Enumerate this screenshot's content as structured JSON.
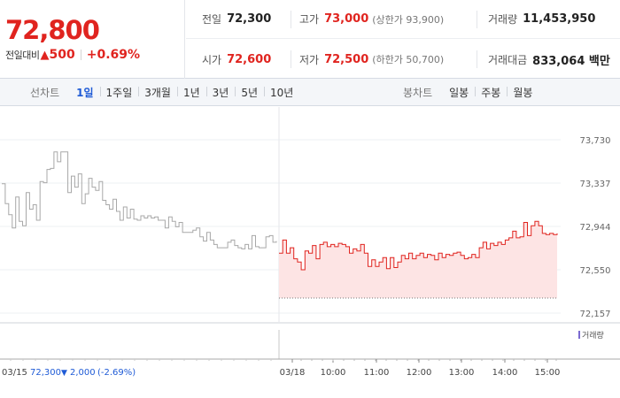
{
  "summary": {
    "current_price": "72,800",
    "change_label": "전일대비",
    "change_arrow": "▲",
    "change_amount": "500",
    "change_rate": "+0.69%"
  },
  "stats": {
    "prev_close": {
      "label": "전일",
      "value": "72,300"
    },
    "high": {
      "label": "고가",
      "value": "73,000",
      "sub": "(상한가 93,900)"
    },
    "volume": {
      "label": "거래량",
      "value": "11,453,950"
    },
    "open": {
      "label": "시가",
      "value": "72,600"
    },
    "low": {
      "label": "저가",
      "value": "72,500",
      "sub": "(하한가 50,700)"
    },
    "trade_value": {
      "label": "거래대금",
      "value": "833,064 백만"
    }
  },
  "toolbar": {
    "line_chart_label": "선차트",
    "line_periods": [
      "1일",
      "1주일",
      "3개월",
      "1년",
      "3년",
      "5년",
      "10년"
    ],
    "active_period": "1일",
    "candle_chart_label": "봉차트",
    "candle_periods": [
      "일봉",
      "주봉",
      "월봉"
    ]
  },
  "chart_data": {
    "type": "line",
    "y_ticks": [
      "73,730",
      "73,337",
      "72,944",
      "72,550",
      "72,157"
    ],
    "ylim": [
      72157,
      73730
    ],
    "x_ticks": [
      "03/15",
      "03/18",
      "10:00",
      "11:00",
      "12:00",
      "13:00",
      "14:00",
      "15:00"
    ],
    "volume_label": "거래량",
    "previous_session": {
      "date_label": "03/15",
      "close": "72,300",
      "change_arrow": "▼",
      "change": "2,000",
      "change_rate": "(-2.69%)",
      "color": "#a8a8a8",
      "values": [
        73330,
        73150,
        73050,
        72930,
        73210,
        72990,
        72950,
        73250,
        73100,
        73140,
        73000,
        73350,
        73340,
        73460,
        73470,
        73620,
        73530,
        73620,
        73620,
        73250,
        73400,
        73300,
        73420,
        73150,
        73240,
        73380,
        73300,
        73270,
        73350,
        73180,
        73140,
        73100,
        73190,
        73080,
        73000,
        73120,
        73020,
        73100,
        73010,
        73000,
        73040,
        73020,
        73040,
        73020,
        73030,
        73000,
        73000,
        72930,
        73030,
        72990,
        72940,
        72980,
        72890,
        72890,
        72890,
        72910,
        72930,
        72850,
        72810,
        72890,
        72820,
        72780,
        72750,
        72750,
        72750,
        72800,
        72820,
        72770,
        72750,
        72740,
        72780,
        72740,
        72860,
        72760,
        72750,
        72750,
        72850,
        72860,
        72800,
        72810
      ],
      "reference": 72300
    },
    "current_session": {
      "date_label": "03/18",
      "color": "#e0241f",
      "fill": "#fde4e4",
      "values": [
        72700,
        72820,
        72700,
        72750,
        72650,
        72620,
        72550,
        72720,
        72700,
        72770,
        72650,
        72780,
        72800,
        72760,
        72780,
        72760,
        72790,
        72780,
        72760,
        72700,
        72740,
        72720,
        72780,
        72700,
        72580,
        72640,
        72580,
        72620,
        72660,
        72560,
        72660,
        72570,
        72620,
        72680,
        72650,
        72700,
        72650,
        72680,
        72700,
        72660,
        72690,
        72680,
        72640,
        72700,
        72660,
        72690,
        72680,
        72700,
        72710,
        72680,
        72650,
        72660,
        72690,
        72660,
        72750,
        72800,
        72740,
        72790,
        72770,
        72800,
        72780,
        72820,
        72840,
        72900,
        72840,
        72850,
        72980,
        72860,
        72950,
        72990,
        72950,
        72880,
        72870,
        72880,
        72870,
        72880
      ],
      "reference": 72300
    }
  }
}
